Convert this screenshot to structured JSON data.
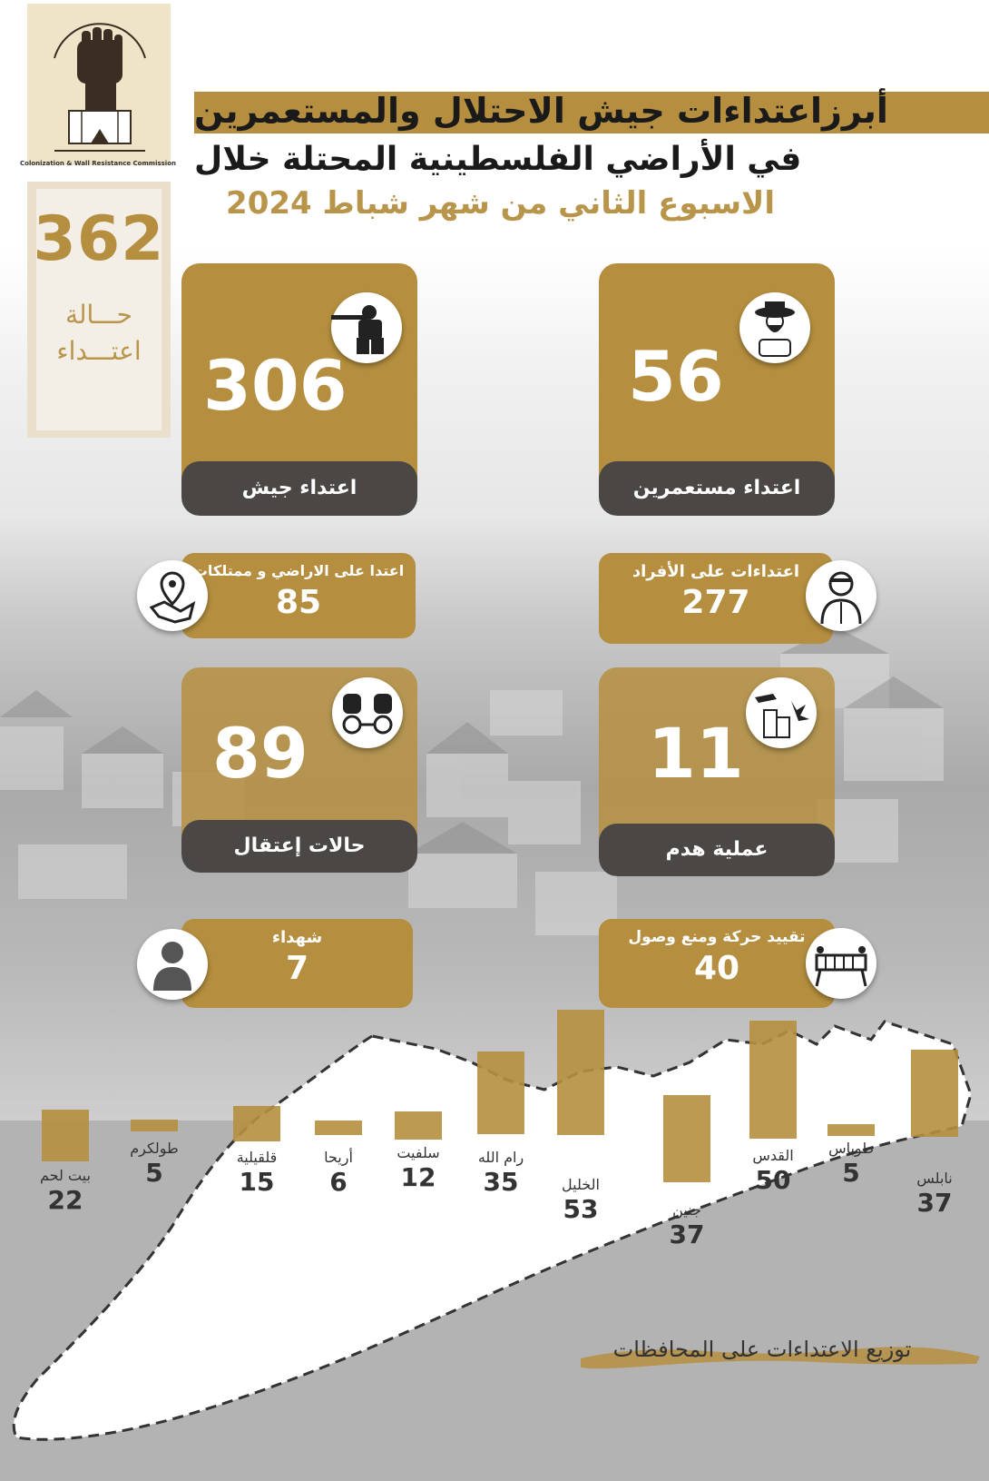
{
  "logo": {
    "caption": "Colonization & Wall Resistance Commission"
  },
  "total": {
    "value": "362",
    "line1": "حـــالة",
    "line2": "اعتـــداء"
  },
  "header": {
    "line1": "أبرزاعتداءات جيش الاحتلال والمستعمرين",
    "line2": "في الأراضي الفلسطينية المحتلة خلال",
    "line3": "الاسبوع الثاني من شهر  شباط  2024"
  },
  "cards": {
    "army": {
      "value": "306",
      "label": "اعتداء جيش",
      "icon": "soldier-icon"
    },
    "settlers": {
      "value": "56",
      "label": "اعتداء مستعمرين",
      "icon": "settler-icon"
    },
    "arrests": {
      "value": "89",
      "label": "حالات إعتقال",
      "icon": "handcuffs-icon"
    },
    "demolition": {
      "value": "11",
      "label": "عملية هدم",
      "icon": "demolition-icon"
    }
  },
  "pills": {
    "land": {
      "label": "اعتدا على الاراضي و ممتلكات",
      "value": "85",
      "icon": "map-pin-icon"
    },
    "individuals": {
      "label": "اعتداءات على الأفراد",
      "value": "277",
      "icon": "injured-person-icon"
    },
    "martyrs": {
      "label": "شهداء",
      "value": "7",
      "icon": "person-icon"
    },
    "movement": {
      "label": "تقييد حركة ومنع وصول",
      "value": "40",
      "icon": "barrier-icon"
    }
  },
  "chart_data": {
    "type": "bar",
    "categories": [
      "بيت لحم",
      "طولكرم",
      "قلقيلية",
      "أريحا",
      "سلفيت",
      "رام الله",
      "الخليل",
      "جنين",
      "القدس",
      "طوباس",
      "نابلس"
    ],
    "values": [
      22,
      5,
      15,
      6,
      12,
      35,
      53,
      37,
      50,
      5,
      37
    ],
    "title": "توزيع الاعتداءات على المحافظات"
  },
  "colors": {
    "accent": "#b58f3f",
    "dark": "#4b4744"
  }
}
